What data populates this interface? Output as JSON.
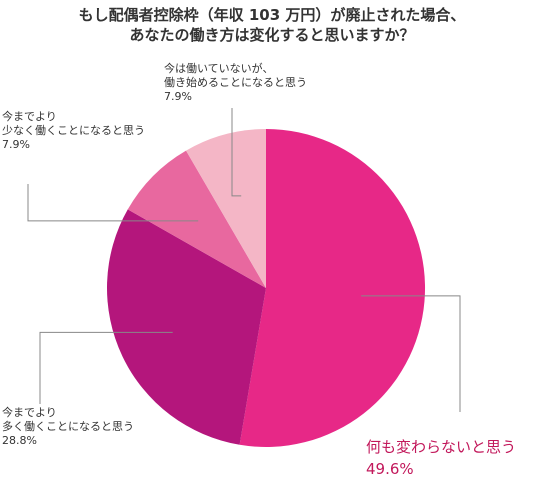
{
  "chart_data": {
    "type": "pie",
    "title_lines": [
      "もし配偶者控除枠（年収 103 万円）が廃止された場合、",
      "あなたの働き方は変化すると思いますか？"
    ],
    "slices": [
      {
        "label_lines": [
          "何も変わらないと思う"
        ],
        "value": 49.6,
        "value_label": "49.6%",
        "color": "#e72887",
        "emphasized": true
      },
      {
        "label_lines": [
          "今までより",
          "多く働くことになると思う"
        ],
        "value": 28.8,
        "value_label": "28.8%",
        "color": "#b4167c"
      },
      {
        "label_lines": [
          "今までより",
          "少なく働くことになると思う"
        ],
        "value": 7.9,
        "value_label": "7.9%",
        "color": "#e8689f"
      },
      {
        "label_lines": [
          "今は働いていないが、",
          "働き始めることになると思う"
        ],
        "value": 7.9,
        "value_label": "7.9%",
        "color": "#f4b6c6"
      }
    ],
    "start_angle": "12 o'clock",
    "direction": "clockwise",
    "legend": "none"
  }
}
